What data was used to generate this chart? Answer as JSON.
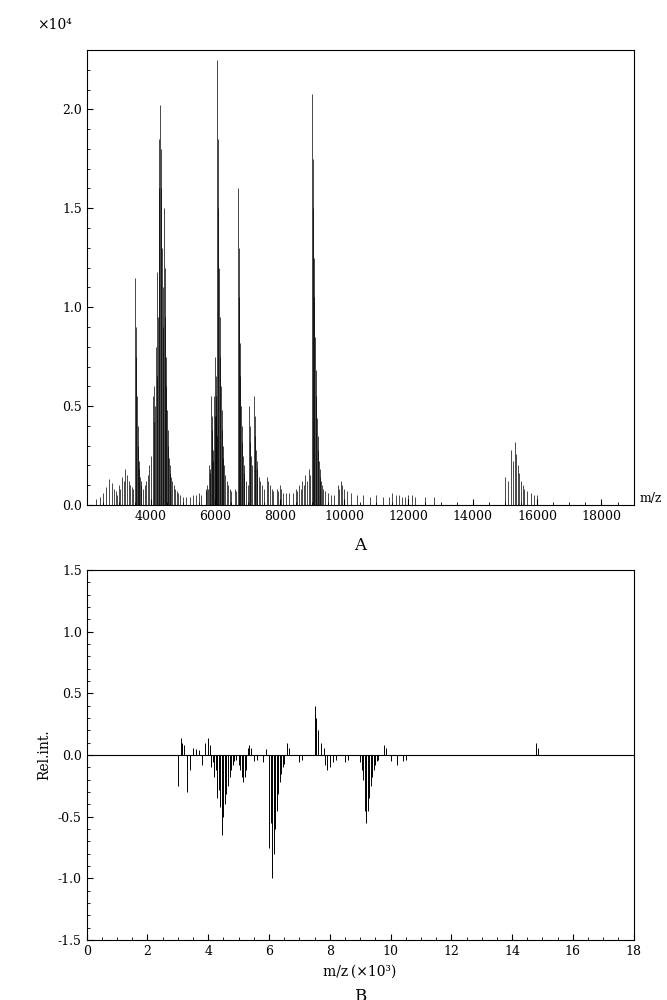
{
  "panel_A": {
    "title_label": "A",
    "xlabel": "m/z",
    "xlim": [
      2000,
      19000
    ],
    "ylim": [
      0,
      2.3
    ],
    "yticks": [
      0.0,
      0.5,
      1.0,
      1.5,
      2.0
    ],
    "xticks": [
      4000,
      6000,
      8000,
      10000,
      12000,
      14000,
      16000,
      18000
    ],
    "exp_label": "×10⁴",
    "peaks": [
      [
        2300,
        0.03
      ],
      [
        2400,
        0.04
      ],
      [
        2500,
        0.06
      ],
      [
        2600,
        0.09
      ],
      [
        2700,
        0.13
      ],
      [
        2800,
        0.11
      ],
      [
        2850,
        0.08
      ],
      [
        2900,
        0.07
      ],
      [
        2950,
        0.05
      ],
      [
        3000,
        0.1
      ],
      [
        3050,
        0.08
      ],
      [
        3100,
        0.14
      ],
      [
        3150,
        0.12
      ],
      [
        3200,
        0.18
      ],
      [
        3250,
        0.15
      ],
      [
        3300,
        0.12
      ],
      [
        3350,
        0.1
      ],
      [
        3400,
        0.09
      ],
      [
        3450,
        0.08
      ],
      [
        3500,
        1.15
      ],
      [
        3520,
        0.9
      ],
      [
        3540,
        0.75
      ],
      [
        3560,
        0.55
      ],
      [
        3580,
        0.4
      ],
      [
        3600,
        0.3
      ],
      [
        3620,
        0.22
      ],
      [
        3640,
        0.18
      ],
      [
        3660,
        0.14
      ],
      [
        3680,
        0.12
      ],
      [
        3700,
        0.1
      ],
      [
        3750,
        0.08
      ],
      [
        3800,
        0.1
      ],
      [
        3850,
        0.12
      ],
      [
        3900,
        0.15
      ],
      [
        3950,
        0.2
      ],
      [
        4000,
        0.25
      ],
      [
        4050,
        0.55
      ],
      [
        4080,
        0.42
      ],
      [
        4100,
        0.6
      ],
      [
        4120,
        0.5
      ],
      [
        4150,
        0.8
      ],
      [
        4180,
        0.65
      ],
      [
        4200,
        1.18
      ],
      [
        4220,
        0.95
      ],
      [
        4250,
        1.85
      ],
      [
        4260,
        1.6
      ],
      [
        4280,
        2.02
      ],
      [
        4300,
        1.8
      ],
      [
        4320,
        1.6
      ],
      [
        4340,
        1.3
      ],
      [
        4360,
        1.1
      ],
      [
        4380,
        0.9
      ],
      [
        4400,
        1.5
      ],
      [
        4420,
        1.2
      ],
      [
        4440,
        0.95
      ],
      [
        4460,
        0.75
      ],
      [
        4480,
        0.6
      ],
      [
        4500,
        0.48
      ],
      [
        4520,
        0.38
      ],
      [
        4540,
        0.3
      ],
      [
        4560,
        0.24
      ],
      [
        4580,
        0.2
      ],
      [
        4600,
        0.16
      ],
      [
        4620,
        0.14
      ],
      [
        4650,
        0.12
      ],
      [
        4700,
        0.1
      ],
      [
        4750,
        0.08
      ],
      [
        4800,
        0.07
      ],
      [
        4850,
        0.06
      ],
      [
        4900,
        0.05
      ],
      [
        5000,
        0.04
      ],
      [
        5100,
        0.04
      ],
      [
        5200,
        0.04
      ],
      [
        5300,
        0.05
      ],
      [
        5400,
        0.05
      ],
      [
        5500,
        0.06
      ],
      [
        5550,
        0.05
      ],
      [
        5700,
        0.08
      ],
      [
        5720,
        0.07
      ],
      [
        5750,
        0.1
      ],
      [
        5770,
        0.08
      ],
      [
        5800,
        0.2
      ],
      [
        5820,
        0.18
      ],
      [
        5840,
        0.16
      ],
      [
        5860,
        0.55
      ],
      [
        5880,
        0.45
      ],
      [
        5900,
        0.38
      ],
      [
        5920,
        0.28
      ],
      [
        5940,
        0.22
      ],
      [
        5960,
        0.55
      ],
      [
        5980,
        0.45
      ],
      [
        6000,
        0.75
      ],
      [
        6010,
        0.65
      ],
      [
        6020,
        0.55
      ],
      [
        6030,
        0.45
      ],
      [
        6040,
        0.35
      ],
      [
        6050,
        2.25
      ],
      [
        6070,
        1.85
      ],
      [
        6090,
        1.5
      ],
      [
        6110,
        1.2
      ],
      [
        6130,
        0.95
      ],
      [
        6150,
        0.75
      ],
      [
        6170,
        0.6
      ],
      [
        6190,
        0.48
      ],
      [
        6210,
        0.38
      ],
      [
        6230,
        0.3
      ],
      [
        6250,
        0.24
      ],
      [
        6270,
        0.2
      ],
      [
        6300,
        0.15
      ],
      [
        6350,
        0.12
      ],
      [
        6400,
        0.1
      ],
      [
        6450,
        0.08
      ],
      [
        6500,
        0.07
      ],
      [
        6600,
        0.08
      ],
      [
        6650,
        0.07
      ],
      [
        6700,
        1.6
      ],
      [
        6720,
        1.3
      ],
      [
        6740,
        1.05
      ],
      [
        6760,
        0.82
      ],
      [
        6780,
        0.65
      ],
      [
        6800,
        0.5
      ],
      [
        6820,
        0.4
      ],
      [
        6840,
        0.32
      ],
      [
        6860,
        0.25
      ],
      [
        6880,
        0.2
      ],
      [
        6900,
        0.16
      ],
      [
        6950,
        0.12
      ],
      [
        7000,
        0.1
      ],
      [
        7050,
        0.5
      ],
      [
        7070,
        0.4
      ],
      [
        7090,
        0.32
      ],
      [
        7110,
        0.25
      ],
      [
        7130,
        0.2
      ],
      [
        7200,
        0.55
      ],
      [
        7220,
        0.45
      ],
      [
        7240,
        0.35
      ],
      [
        7260,
        0.28
      ],
      [
        7280,
        0.22
      ],
      [
        7300,
        0.18
      ],
      [
        7350,
        0.14
      ],
      [
        7400,
        0.12
      ],
      [
        7450,
        0.1
      ],
      [
        7500,
        0.08
      ],
      [
        7600,
        0.14
      ],
      [
        7650,
        0.12
      ],
      [
        7700,
        0.1
      ],
      [
        7750,
        0.08
      ],
      [
        7800,
        0.07
      ],
      [
        7900,
        0.08
      ],
      [
        7950,
        0.07
      ],
      [
        8000,
        0.1
      ],
      [
        8050,
        0.08
      ],
      [
        8100,
        0.06
      ],
      [
        8200,
        0.06
      ],
      [
        8300,
        0.06
      ],
      [
        8400,
        0.06
      ],
      [
        8500,
        0.08
      ],
      [
        8550,
        0.07
      ],
      [
        8600,
        0.1
      ],
      [
        8650,
        0.08
      ],
      [
        8700,
        0.12
      ],
      [
        8750,
        0.1
      ],
      [
        8800,
        0.15
      ],
      [
        8850,
        0.12
      ],
      [
        8900,
        0.18
      ],
      [
        8950,
        0.15
      ],
      [
        9000,
        2.08
      ],
      [
        9020,
        1.75
      ],
      [
        9040,
        1.5
      ],
      [
        9060,
        1.25
      ],
      [
        9080,
        1.05
      ],
      [
        9100,
        0.85
      ],
      [
        9120,
        0.68
      ],
      [
        9140,
        0.55
      ],
      [
        9160,
        0.44
      ],
      [
        9180,
        0.35
      ],
      [
        9200,
        0.28
      ],
      [
        9220,
        0.22
      ],
      [
        9240,
        0.18
      ],
      [
        9260,
        0.14
      ],
      [
        9280,
        0.12
      ],
      [
        9300,
        0.1
      ],
      [
        9350,
        0.08
      ],
      [
        9400,
        0.07
      ],
      [
        9500,
        0.06
      ],
      [
        9600,
        0.05
      ],
      [
        9700,
        0.05
      ],
      [
        9800,
        0.1
      ],
      [
        9850,
        0.08
      ],
      [
        9900,
        0.12
      ],
      [
        9950,
        0.1
      ],
      [
        10000,
        0.08
      ],
      [
        10100,
        0.07
      ],
      [
        10200,
        0.06
      ],
      [
        10400,
        0.05
      ],
      [
        10600,
        0.05
      ],
      [
        10800,
        0.04
      ],
      [
        11000,
        0.05
      ],
      [
        11200,
        0.04
      ],
      [
        11400,
        0.04
      ],
      [
        11500,
        0.06
      ],
      [
        11600,
        0.05
      ],
      [
        11700,
        0.05
      ],
      [
        11800,
        0.04
      ],
      [
        11900,
        0.04
      ],
      [
        12000,
        0.05
      ],
      [
        12100,
        0.05
      ],
      [
        12200,
        0.04
      ],
      [
        12500,
        0.04
      ],
      [
        12800,
        0.04
      ],
      [
        15000,
        0.14
      ],
      [
        15100,
        0.12
      ],
      [
        15200,
        0.28
      ],
      [
        15250,
        0.22
      ],
      [
        15300,
        0.32
      ],
      [
        15350,
        0.26
      ],
      [
        15400,
        0.2
      ],
      [
        15450,
        0.16
      ],
      [
        15500,
        0.12
      ],
      [
        15550,
        0.1
      ],
      [
        15600,
        0.08
      ],
      [
        15700,
        0.07
      ],
      [
        15800,
        0.06
      ],
      [
        15900,
        0.05
      ],
      [
        16000,
        0.05
      ]
    ]
  },
  "panel_B": {
    "title_label": "B",
    "xlabel": "m/z（×10³）",
    "ylabel": "Rel.int.",
    "xlim": [
      0,
      18
    ],
    "ylim": [
      -1.5,
      1.5
    ],
    "yticks": [
      -1.5,
      -1.0,
      -0.5,
      0.0,
      0.5,
      1.0,
      1.5
    ],
    "xticks": [
      0,
      2,
      4,
      6,
      8,
      10,
      12,
      14,
      16,
      18
    ],
    "peaks": [
      [
        3.0,
        -0.25
      ],
      [
        3.1,
        0.14
      ],
      [
        3.15,
        0.1
      ],
      [
        3.2,
        0.08
      ],
      [
        3.3,
        -0.3
      ],
      [
        3.4,
        -0.12
      ],
      [
        3.5,
        0.06
      ],
      [
        3.6,
        0.05
      ],
      [
        3.7,
        0.04
      ],
      [
        3.8,
        -0.08
      ],
      [
        3.9,
        0.1
      ],
      [
        4.0,
        0.14
      ],
      [
        4.05,
        0.08
      ],
      [
        4.1,
        -0.1
      ],
      [
        4.15,
        -0.06
      ],
      [
        4.2,
        -0.18
      ],
      [
        4.25,
        -0.12
      ],
      [
        4.3,
        -0.35
      ],
      [
        4.35,
        -0.28
      ],
      [
        4.4,
        -0.42
      ],
      [
        4.45,
        -0.65
      ],
      [
        4.5,
        -0.5
      ],
      [
        4.55,
        -0.4
      ],
      [
        4.6,
        -0.32
      ],
      [
        4.65,
        -0.25
      ],
      [
        4.7,
        -0.18
      ],
      [
        4.75,
        -0.12
      ],
      [
        4.8,
        -0.08
      ],
      [
        4.85,
        -0.05
      ],
      [
        4.9,
        -0.04
      ],
      [
        5.0,
        -0.08
      ],
      [
        5.05,
        -0.12
      ],
      [
        5.1,
        -0.18
      ],
      [
        5.15,
        -0.22
      ],
      [
        5.2,
        -0.18
      ],
      [
        5.25,
        -0.12
      ],
      [
        5.3,
        0.06
      ],
      [
        5.35,
        0.08
      ],
      [
        5.4,
        0.06
      ],
      [
        5.5,
        -0.05
      ],
      [
        5.6,
        -0.04
      ],
      [
        5.8,
        -0.06
      ],
      [
        5.9,
        0.05
      ],
      [
        6.0,
        -0.75
      ],
      [
        6.05,
        -0.55
      ],
      [
        6.1,
        -1.0
      ],
      [
        6.15,
        -0.8
      ],
      [
        6.2,
        -0.6
      ],
      [
        6.25,
        -0.45
      ],
      [
        6.3,
        -0.32
      ],
      [
        6.35,
        -0.22
      ],
      [
        6.4,
        -0.15
      ],
      [
        6.45,
        -0.1
      ],
      [
        6.5,
        -0.07
      ],
      [
        6.6,
        0.1
      ],
      [
        6.65,
        0.06
      ],
      [
        7.0,
        -0.06
      ],
      [
        7.1,
        -0.04
      ],
      [
        7.5,
        0.4
      ],
      [
        7.55,
        0.3
      ],
      [
        7.6,
        0.2
      ],
      [
        7.7,
        0.1
      ],
      [
        7.8,
        0.06
      ],
      [
        7.85,
        -0.08
      ],
      [
        7.9,
        -0.12
      ],
      [
        8.0,
        -0.1
      ],
      [
        8.1,
        -0.06
      ],
      [
        8.2,
        -0.04
      ],
      [
        8.5,
        -0.06
      ],
      [
        8.6,
        -0.04
      ],
      [
        9.0,
        -0.06
      ],
      [
        9.05,
        -0.12
      ],
      [
        9.1,
        -0.2
      ],
      [
        9.15,
        -0.45
      ],
      [
        9.2,
        -0.55
      ],
      [
        9.25,
        -0.45
      ],
      [
        9.3,
        -0.35
      ],
      [
        9.35,
        -0.25
      ],
      [
        9.4,
        -0.18
      ],
      [
        9.45,
        -0.12
      ],
      [
        9.5,
        -0.08
      ],
      [
        9.55,
        -0.05
      ],
      [
        9.6,
        -0.04
      ],
      [
        9.8,
        0.08
      ],
      [
        9.85,
        0.06
      ],
      [
        10.0,
        -0.05
      ],
      [
        10.2,
        -0.08
      ],
      [
        10.4,
        -0.05
      ],
      [
        10.5,
        -0.04
      ],
      [
        14.8,
        0.1
      ],
      [
        14.85,
        0.06
      ]
    ]
  },
  "line_color": "#000000",
  "background_color": "#ffffff",
  "axis_color": "#000000"
}
